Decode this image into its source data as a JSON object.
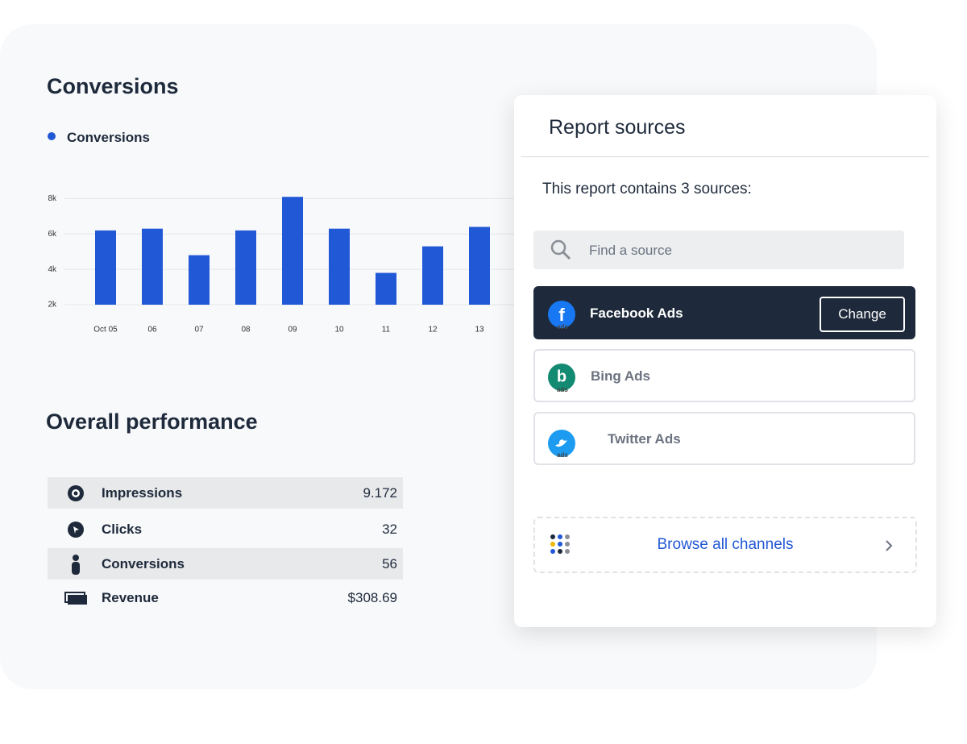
{
  "conversions_card": {
    "title": "Conversions"
  },
  "chart_data": {
    "type": "bar",
    "categories": [
      "Oct 05",
      "06",
      "07",
      "08",
      "09",
      "10",
      "11",
      "12",
      "13"
    ],
    "series": [
      {
        "name": "Conversions",
        "color": "#2158d6",
        "values": [
          6200,
          6300,
          4800,
          6200,
          8100,
          6300,
          3800,
          5300,
          6400
        ]
      }
    ],
    "ylim": [
      2000,
      8200
    ],
    "yticks": [
      {
        "value": 2000,
        "label": "2k"
      },
      {
        "value": 4000,
        "label": "4k"
      },
      {
        "value": 6000,
        "label": "6k"
      },
      {
        "value": 8000,
        "label": "8k"
      }
    ],
    "grid": true
  },
  "performance": {
    "title": "Overall performance",
    "rows": [
      {
        "label": "Impressions",
        "value": "9.172"
      },
      {
        "label": "Clicks",
        "value": "32"
      },
      {
        "label": "Conversions",
        "value": "56"
      },
      {
        "label": "Revenue",
        "value": "$308.69"
      }
    ]
  },
  "sources_panel": {
    "title": "Report sources",
    "subtitle": "This report contains 3 sources:",
    "search_placeholder": "Find a source",
    "sources": [
      {
        "name": "Facebook Ads",
        "badge": "ads",
        "action": "Change"
      },
      {
        "name": "Bing Ads",
        "badge": "ads"
      },
      {
        "name": "Twitter Ads",
        "badge": "ads"
      }
    ],
    "browse": "Browse all channels"
  }
}
